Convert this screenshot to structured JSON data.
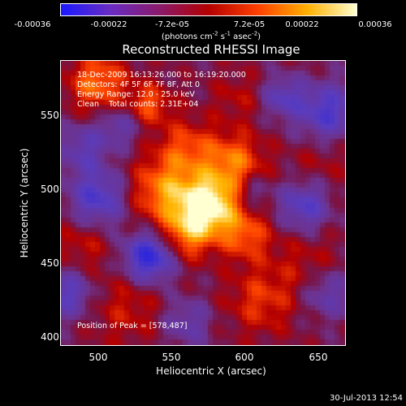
{
  "colorbar": {
    "ticks": [
      "-0.00036",
      "-0.00022",
      "-7.2e-05",
      "7.2e-05",
      "0.00022",
      "0.00036"
    ],
    "units": "(photons cm-2 s-1 asec-2)",
    "gradient": [
      "#1a1aff",
      "#6a2cc4",
      "#8a1a6a",
      "#b40000",
      "#ff4000",
      "#ffb000",
      "#ffffd0"
    ]
  },
  "plot": {
    "title": "Reconstructed RHESSI Image",
    "info_lines": [
      "18-Dec-2009 16:13:26.000 to 16:19:20.000",
      "Detectors: 4F 5F 6F 7F 8F, Att 0",
      "Energy Range: 12.0 - 25.0 keV",
      "Clean    Total counts: 2.31E+04"
    ],
    "peak_label": "Position of Peak = [578,487]",
    "x_label": "Heliocentric X (arcsec)",
    "y_label": "Heliocentric Y (arcsec)",
    "x_ticks": [
      "500",
      "550",
      "600",
      "650"
    ],
    "y_ticks": [
      "550",
      "500",
      "450",
      "400"
    ],
    "peak": [
      578,
      487
    ]
  },
  "footer": {
    "date": "30-Jul-2013 12:54"
  },
  "chart_data": {
    "type": "heatmap",
    "title": "Reconstructed RHESSI Image",
    "xlabel": "Heliocentric X (arcsec)",
    "ylabel": "Heliocentric Y (arcsec)",
    "xlim": [
      475,
      667
    ],
    "ylim": [
      395,
      590
    ],
    "x_ticks": [
      500,
      550,
      600,
      650
    ],
    "y_ticks": [
      400,
      450,
      500,
      550
    ],
    "colorbar_range": [
      -0.00036,
      0.00036
    ],
    "colorbar_ticks": [
      -0.00036,
      -0.00022,
      -7.2e-05,
      7.2e-05,
      0.00022,
      0.00036
    ],
    "peak": [
      578,
      487
    ]
  }
}
